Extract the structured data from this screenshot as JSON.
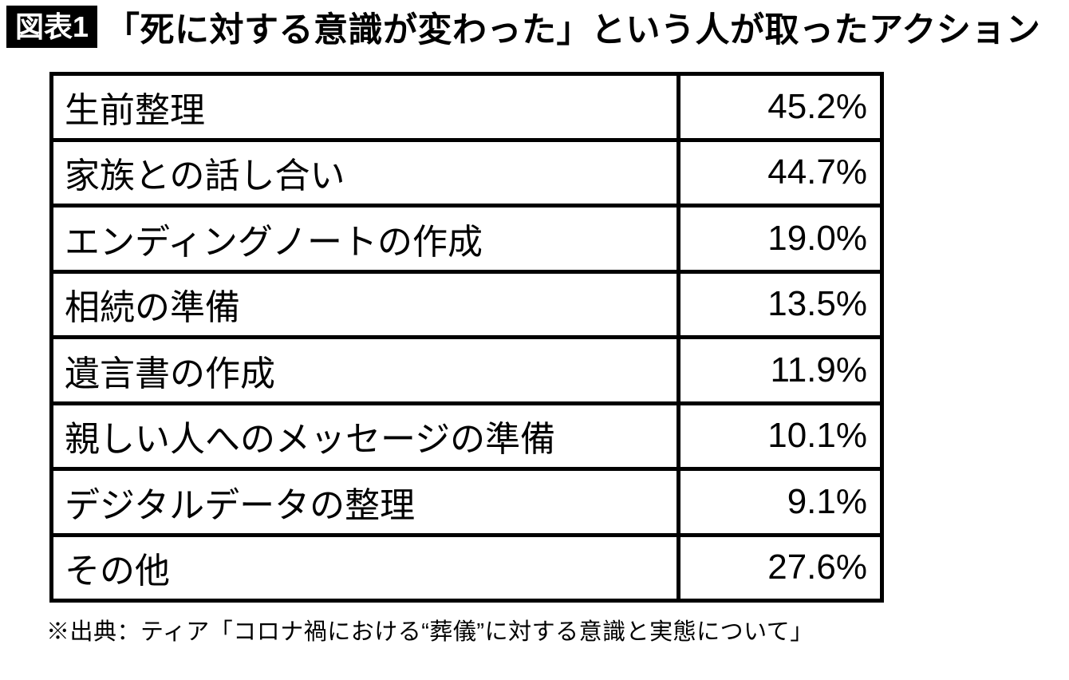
{
  "figure": {
    "badge": "図表1",
    "title": "「死に対する意識が変わった」という人が取ったアクション"
  },
  "table": {
    "rows": [
      {
        "label": "生前整理",
        "value": "45.2%"
      },
      {
        "label": "家族との話し合い",
        "value": "44.7%"
      },
      {
        "label": "エンディングノートの作成",
        "value": "19.0%"
      },
      {
        "label": "相続の準備",
        "value": "13.5%"
      },
      {
        "label": "遺言書の作成",
        "value": "11.9%"
      },
      {
        "label": "親しい人へのメッセージの準備",
        "value": "10.1%"
      },
      {
        "label": "デジタルデータの整理",
        "value": "9.1%"
      },
      {
        "label": "その他",
        "value": "27.6%"
      }
    ]
  },
  "footnote": "※出典：ティア「コロナ禍における“葬儀”に対する意識と実態について」",
  "colors": {
    "background": "#ffffff",
    "text": "#000000",
    "border": "#000000",
    "badge_bg": "#000000",
    "badge_text": "#ffffff"
  },
  "chart_data": {
    "type": "table",
    "title": "「死に対する意識が変わった」という人が取ったアクション",
    "categories": [
      "生前整理",
      "家族との話し合い",
      "エンディングノートの作成",
      "相続の準備",
      "遺言書の作成",
      "親しい人へのメッセージの準備",
      "デジタルデータの整理",
      "その他"
    ],
    "values": [
      45.2,
      44.7,
      19.0,
      13.5,
      11.9,
      10.1,
      9.1,
      27.6
    ],
    "unit": "%",
    "legend": false,
    "grid": false,
    "source": "※出典：ティア「コロナ禍における“葬儀”に対する意識と実態について」"
  }
}
